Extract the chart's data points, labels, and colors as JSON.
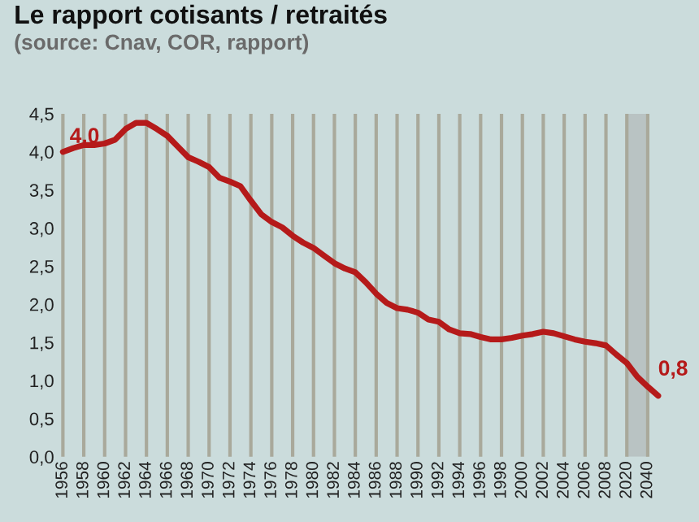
{
  "chart_data": {
    "type": "line",
    "title": "Le rapport cotisants / retraités",
    "subtitle": "(source: Cnav, COR, rapport)",
    "categories": [
      "1956",
      null,
      "1958",
      null,
      "1960",
      null,
      "1962",
      null,
      "1964",
      null,
      "1966",
      null,
      "1968",
      null,
      "1970",
      null,
      "1972",
      null,
      "1974",
      null,
      "1976",
      null,
      "1978",
      null,
      "1980",
      null,
      "1982",
      null,
      "1984",
      null,
      "1986",
      null,
      "1988",
      null,
      "1990",
      null,
      "1992",
      null,
      "1994",
      null,
      "1996",
      null,
      "1998",
      null,
      "2000",
      null,
      "2002",
      null,
      "2004",
      null,
      "2006",
      null,
      "2008",
      null,
      "2020",
      null,
      "2040",
      null
    ],
    "series": [
      {
        "color": "#b51a1a",
        "values": [
          4.0,
          4.05,
          4.09,
          4.09,
          4.11,
          4.16,
          4.3,
          4.38,
          4.38,
          4.3,
          4.21,
          4.07,
          3.93,
          3.87,
          3.8,
          3.66,
          3.61,
          3.55,
          3.36,
          3.18,
          3.08,
          3.01,
          2.9,
          2.81,
          2.74,
          2.64,
          2.54,
          2.47,
          2.42,
          2.29,
          2.14,
          2.02,
          1.95,
          1.93,
          1.89,
          1.8,
          1.77,
          1.67,
          1.62,
          1.61,
          1.57,
          1.54,
          1.54,
          1.56,
          1.59,
          1.61,
          1.64,
          1.62,
          1.58,
          1.54,
          1.51,
          1.49,
          1.46,
          1.34,
          1.23,
          1.05,
          0.92,
          0.8
        ]
      }
    ],
    "annotations": [
      {
        "text": "4,0",
        "x": "1956",
        "y": 4.0
      },
      "0,8"
    ],
    "bands": [
      {
        "axis": "x",
        "from": "2020",
        "to": "2040",
        "color": "#b9c3c3"
      }
    ],
    "ylim": [
      0,
      4.5
    ],
    "yticks": [
      {
        "value": 0,
        "label": "0,0"
      },
      {
        "value": 0.5,
        "label": "0,5"
      },
      {
        "value": 1,
        "label": "1,0"
      },
      {
        "value": 1.5,
        "label": "1,5"
      },
      {
        "value": 2,
        "label": "2,0"
      },
      {
        "value": 2.5,
        "label": "2,5"
      },
      {
        "value": 3,
        "label": "3,0"
      },
      {
        "value": 3.5,
        "label": "3,5"
      },
      {
        "value": 4,
        "label": "4,0"
      },
      {
        "value": 4.5,
        "label": "4,5"
      }
    ],
    "grid": "x",
    "legend": false,
    "marker": "none",
    "line_style": "solid"
  }
}
